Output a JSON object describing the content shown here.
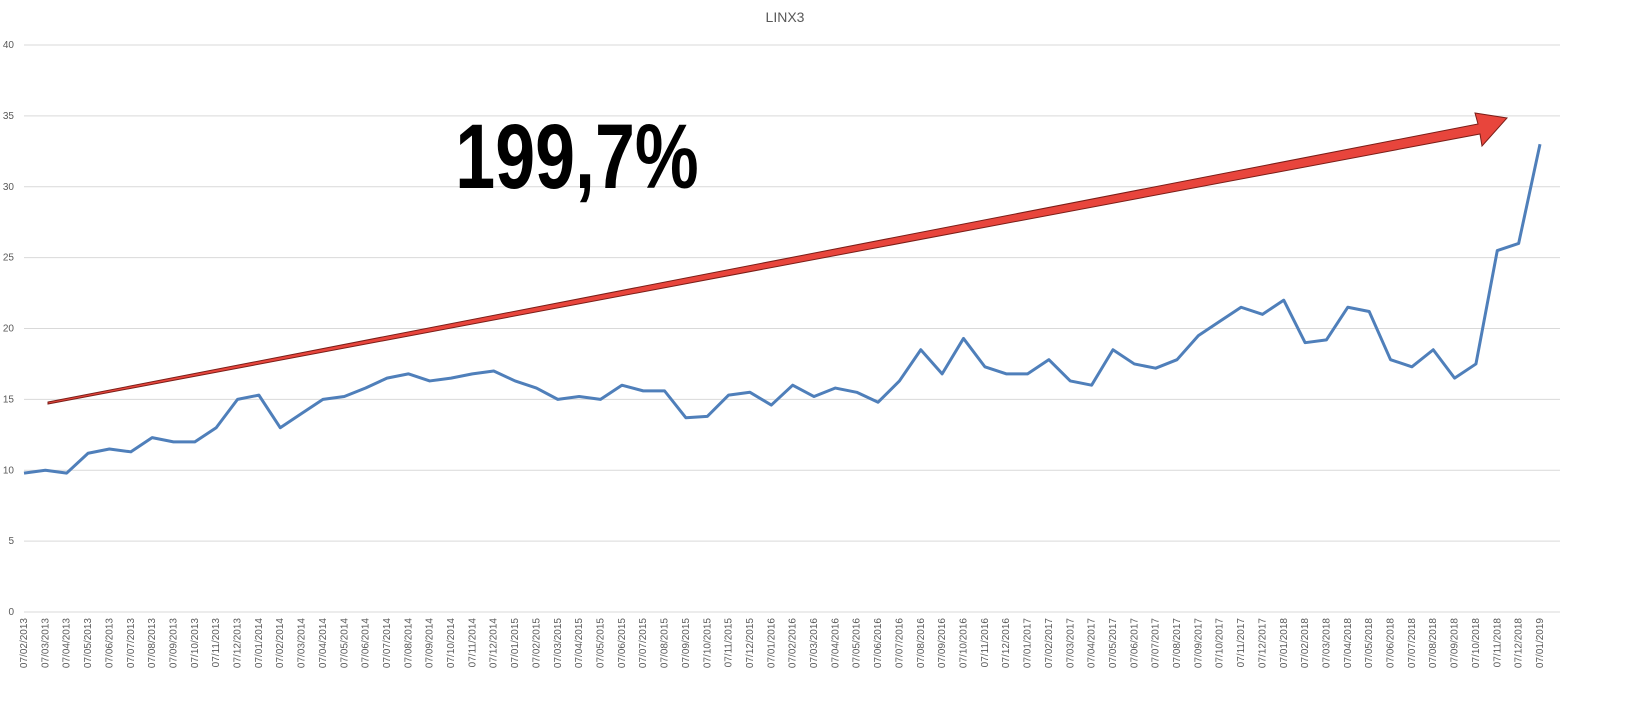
{
  "chart_data": {
    "type": "line",
    "title": "LINX3",
    "annotation": "199,7%",
    "categories": [
      "07/02/2013",
      "07/03/2013",
      "07/04/2013",
      "07/05/2013",
      "07/06/2013",
      "07/07/2013",
      "07/08/2013",
      "07/09/2013",
      "07/10/2013",
      "07/11/2013",
      "07/12/2013",
      "07/01/2014",
      "07/02/2014",
      "07/03/2014",
      "07/04/2014",
      "07/05/2014",
      "07/06/2014",
      "07/07/2014",
      "07/08/2014",
      "07/09/2014",
      "07/10/2014",
      "07/11/2014",
      "07/12/2014",
      "07/01/2015",
      "07/02/2015",
      "07/03/2015",
      "07/04/2015",
      "07/05/2015",
      "07/06/2015",
      "07/07/2015",
      "07/08/2015",
      "07/09/2015",
      "07/10/2015",
      "07/11/2015",
      "07/12/2015",
      "07/01/2016",
      "07/02/2016",
      "07/03/2016",
      "07/04/2016",
      "07/05/2016",
      "07/06/2016",
      "07/07/2016",
      "07/08/2016",
      "07/09/2016",
      "07/10/2016",
      "07/11/2016",
      "07/12/2016",
      "07/01/2017",
      "07/02/2017",
      "07/03/2017",
      "07/04/2017",
      "07/05/2017",
      "07/06/2017",
      "07/07/2017",
      "07/08/2017",
      "07/09/2017",
      "07/10/2017",
      "07/11/2017",
      "07/12/2017",
      "07/01/2018",
      "07/02/2018",
      "07/03/2018",
      "07/04/2018",
      "07/05/2018",
      "07/06/2018",
      "07/07/2018",
      "07/08/2018",
      "07/09/2018",
      "07/10/2018",
      "07/11/2018",
      "07/12/2018",
      "07/01/2019"
    ],
    "values": [
      9.8,
      10.0,
      9.8,
      11.2,
      11.5,
      11.3,
      12.3,
      12.0,
      12.0,
      13.0,
      15.0,
      15.3,
      13.0,
      14.0,
      15.0,
      15.2,
      15.8,
      16.5,
      16.8,
      16.3,
      16.5,
      16.8,
      17.0,
      16.3,
      15.8,
      15.0,
      15.2,
      15.0,
      16.0,
      15.6,
      15.6,
      13.7,
      13.8,
      15.3,
      15.5,
      14.6,
      16.0,
      15.2,
      15.8,
      15.5,
      14.8,
      16.3,
      18.5,
      16.8,
      19.3,
      17.3,
      16.8,
      16.8,
      17.8,
      16.3,
      16.0,
      18.5,
      17.5,
      17.2,
      17.8,
      19.5,
      20.5,
      21.5,
      21.0,
      22.0,
      19.0,
      19.2,
      21.5,
      21.2,
      17.8,
      17.3,
      18.5,
      16.5,
      17.5,
      25.5,
      26.0,
      33.0
    ],
    "color": "#4f7fba",
    "ylim": [
      0,
      40
    ],
    "yticks": [
      0,
      5,
      10,
      15,
      20,
      25,
      30,
      35,
      40
    ],
    "grid": true
  }
}
